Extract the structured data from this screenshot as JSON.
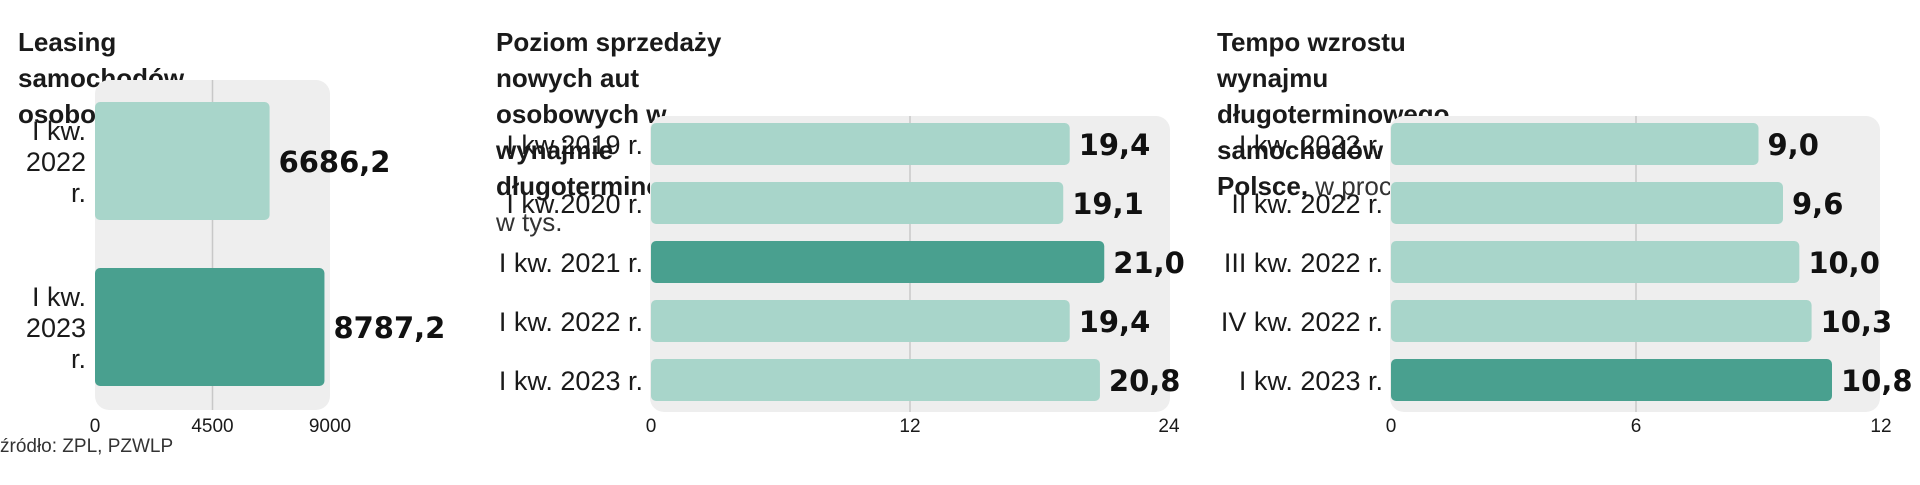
{
  "colors": {
    "light": "#a8d5ca",
    "dark": "#49a08f",
    "plot_bg": "#eeeeee",
    "grid": "#c8c8c8"
  },
  "source": "źródło: ZPL, PZWLP",
  "chart_data": [
    {
      "type": "bar",
      "orientation": "horizontal",
      "title": "Leasing samochodów osobowych",
      "unit": "",
      "categories": [
        [
          "I kw.",
          "2022",
          "r."
        ],
        [
          "I kw.",
          "2023",
          "r."
        ]
      ],
      "values": [
        6686.2,
        8787.2
      ],
      "value_labels": [
        "6686,2",
        "8787,2"
      ],
      "highlight": [
        false,
        true
      ],
      "xlim": [
        0,
        9000
      ],
      "ticks": [
        0,
        4500,
        9000
      ],
      "tick_labels": [
        "0",
        "4500",
        "9000"
      ]
    },
    {
      "type": "bar",
      "orientation": "horizontal",
      "title_lines": [
        "Poziom sprzedaży nowych aut osobowych w wynajmie",
        "długoterminowym,"
      ],
      "unit": "w tys.",
      "categories": [
        "I kw.2019 r.",
        "I kw.2020 r.",
        "I kw. 2021 r.",
        "I kw. 2022 r.",
        "I kw. 2023 r."
      ],
      "values": [
        19.4,
        19.1,
        21.0,
        19.4,
        20.8
      ],
      "value_labels": [
        "19,4",
        "19,1",
        "21,0",
        "19,4",
        "20,8"
      ],
      "highlight": [
        false,
        false,
        true,
        false,
        false
      ],
      "xlim": [
        0,
        24
      ],
      "ticks": [
        0,
        12,
        24
      ],
      "tick_labels": [
        "0",
        "12",
        "24"
      ]
    },
    {
      "type": "bar",
      "orientation": "horizontal",
      "title_lines": [
        "Tempo wzrostu wynajmu długoterminowego",
        "samochodów w Polsce,"
      ],
      "unit": "w proc.",
      "categories": [
        "I kw. 2022 r.",
        "II kw. 2022 r.",
        "III kw. 2022 r.",
        "IV kw. 2022 r.",
        "I kw. 2023 r."
      ],
      "values": [
        9.0,
        9.6,
        10.0,
        10.3,
        10.8
      ],
      "value_labels": [
        "9,0",
        "9,6",
        "10,0",
        "10,3",
        "10,8"
      ],
      "highlight": [
        false,
        false,
        false,
        false,
        true
      ],
      "xlim": [
        0,
        12
      ],
      "ticks": [
        0,
        6,
        12
      ],
      "tick_labels": [
        "0",
        "6",
        "12"
      ]
    }
  ]
}
